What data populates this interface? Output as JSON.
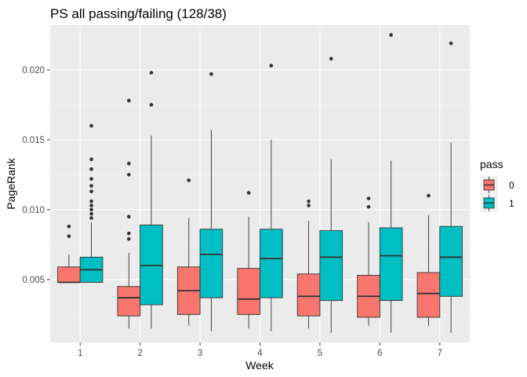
{
  "chart_data": {
    "type": "boxplot",
    "title": "PS all passing/failing (128/38)",
    "xlabel": "Week",
    "ylabel": "PageRank",
    "categories": [
      "1",
      "2",
      "3",
      "4",
      "5",
      "6",
      "7"
    ],
    "yticks": [
      0.005,
      0.01,
      0.015,
      0.02
    ],
    "ytick_labels": [
      "0.005",
      "0.010",
      "0.015",
      "0.020"
    ],
    "ylim": [
      0.0005,
      0.0232
    ],
    "grid": true,
    "legend": {
      "title": "pass",
      "position": "right"
    },
    "series": [
      {
        "name": "0",
        "color": "#F8766D",
        "boxes": [
          {
            "low": 0.0048,
            "q1": 0.0048,
            "median": 0.0048,
            "q3": 0.0059,
            "high": 0.0068,
            "outliers": [
              0.0081,
              0.0088
            ]
          },
          {
            "low": 0.0015,
            "q1": 0.0024,
            "median": 0.0037,
            "q3": 0.0045,
            "high": 0.0069,
            "outliers": [
              0.0079,
              0.0083,
              0.0095,
              0.0125,
              0.0133,
              0.0178
            ]
          },
          {
            "low": 0.0017,
            "q1": 0.0025,
            "median": 0.0042,
            "q3": 0.0059,
            "high": 0.0094,
            "outliers": [
              0.0121
            ]
          },
          {
            "low": 0.0015,
            "q1": 0.0025,
            "median": 0.0036,
            "q3": 0.0058,
            "high": 0.0095,
            "outliers": [
              0.0112
            ]
          },
          {
            "low": 0.0015,
            "q1": 0.0024,
            "median": 0.0038,
            "q3": 0.0054,
            "high": 0.0092,
            "outliers": [
              0.0103,
              0.0106
            ]
          },
          {
            "low": 0.0017,
            "q1": 0.0023,
            "median": 0.0038,
            "q3": 0.0053,
            "high": 0.0091,
            "outliers": [
              0.0102,
              0.0108
            ]
          },
          {
            "low": 0.0017,
            "q1": 0.0023,
            "median": 0.004,
            "q3": 0.0055,
            "high": 0.0096,
            "outliers": [
              0.011
            ]
          }
        ]
      },
      {
        "name": "1",
        "color": "#00BFC4",
        "boxes": [
          {
            "low": 0.0048,
            "q1": 0.0048,
            "median": 0.0057,
            "q3": 0.0066,
            "high": 0.0091,
            "outliers": [
              0.0094,
              0.0097,
              0.01,
              0.0103,
              0.0106,
              0.0113,
              0.0117,
              0.0122,
              0.0129,
              0.0136,
              0.016
            ]
          },
          {
            "low": 0.0015,
            "q1": 0.0032,
            "median": 0.006,
            "q3": 0.0089,
            "high": 0.0153,
            "outliers": [
              0.0175,
              0.0198
            ]
          },
          {
            "low": 0.0013,
            "q1": 0.0037,
            "median": 0.0068,
            "q3": 0.0086,
            "high": 0.0157,
            "outliers": [
              0.0197
            ]
          },
          {
            "low": 0.0013,
            "q1": 0.0037,
            "median": 0.0065,
            "q3": 0.0086,
            "high": 0.015,
            "outliers": [
              0.0203
            ]
          },
          {
            "low": 0.0012,
            "q1": 0.0035,
            "median": 0.0066,
            "q3": 0.0085,
            "high": 0.0136,
            "outliers": [
              0.0208
            ]
          },
          {
            "low": 0.0012,
            "q1": 0.0035,
            "median": 0.0067,
            "q3": 0.0087,
            "high": 0.0135,
            "outliers": [
              0.0225
            ]
          },
          {
            "low": 0.0012,
            "q1": 0.0038,
            "median": 0.0066,
            "q3": 0.0088,
            "high": 0.0148,
            "outliers": [
              0.0219
            ]
          }
        ]
      }
    ]
  }
}
